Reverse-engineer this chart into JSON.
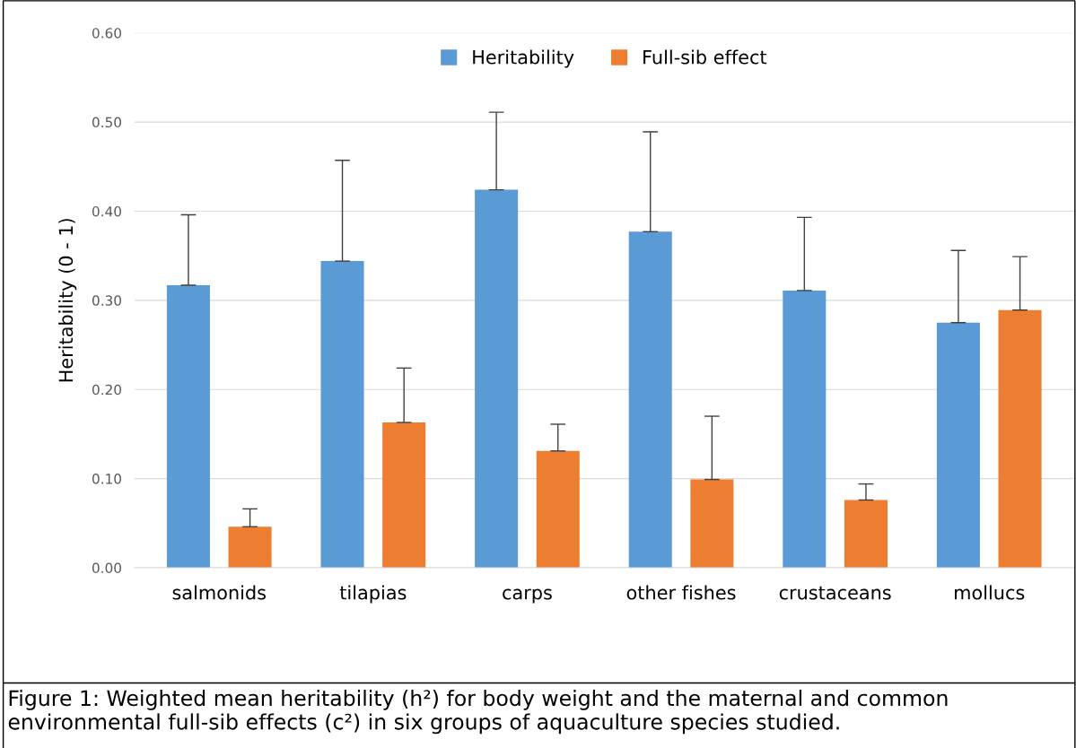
{
  "chart_data": {
    "type": "bar",
    "ylabel": "Heritability (0 - 1)",
    "categories": [
      "salmonids",
      "tilapias",
      "carps",
      "other fishes",
      "crustaceans",
      "mollucs"
    ],
    "series": [
      {
        "name": "Heritability",
        "color": "#5b9bd5",
        "values": [
          0.317,
          0.344,
          0.424,
          0.377,
          0.311,
          0.275
        ],
        "errors": [
          [
            0.317,
            0.396
          ],
          [
            0.344,
            0.457
          ],
          [
            0.424,
            0.511
          ],
          [
            0.377,
            0.489
          ],
          [
            0.311,
            0.393
          ],
          [
            0.275,
            0.356
          ]
        ]
      },
      {
        "name": "Full-sib effect",
        "color": "#ed7d31",
        "values": [
          0.046,
          0.163,
          0.131,
          0.099,
          0.076,
          0.289
        ],
        "errors": [
          [
            0.046,
            0.066
          ],
          [
            0.163,
            0.224
          ],
          [
            0.131,
            0.161
          ],
          [
            0.099,
            0.17
          ],
          [
            0.076,
            0.094
          ],
          [
            0.289,
            0.349
          ]
        ]
      }
    ],
    "ylim": [
      0,
      0.6
    ],
    "yticks": [
      {
        "value": 0,
        "label": "0.00"
      },
      {
        "value": 0.1,
        "label": "0.10"
      },
      {
        "value": 0.2,
        "label": "0.20"
      },
      {
        "value": 0.3,
        "label": "0.30"
      },
      {
        "value": 0.4,
        "label": "0.40"
      },
      {
        "value": 0.5,
        "label": "0.50"
      },
      {
        "value": 0.6,
        "label": "0.60"
      }
    ],
    "grid": "y",
    "legend": "top",
    "annotations": [
      "Figure 1: Weighted mean heritability (h²) for body weight and the maternal and common environmental full-sib effects (c²) in six groups of aquaculture species studied."
    ]
  }
}
